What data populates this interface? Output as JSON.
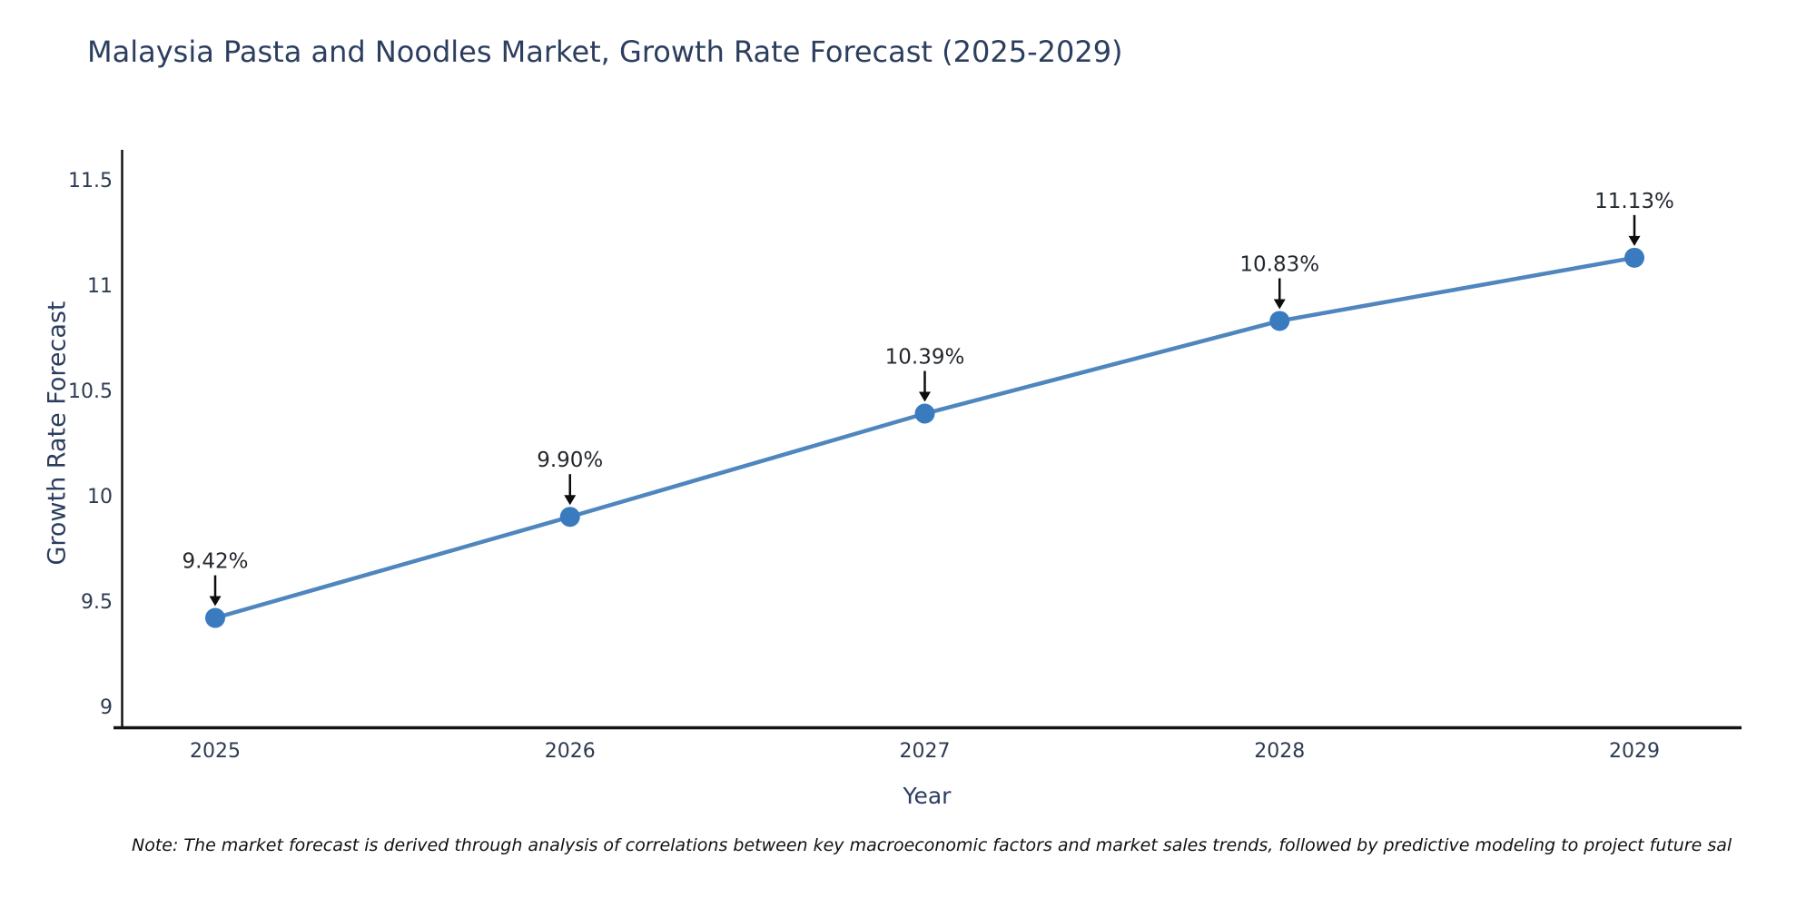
{
  "title": "Malaysia Pasta and Noodles Market, Growth Rate Forecast (2025-2029)",
  "note": "Note: The market forecast is derived through analysis of correlations between key macroeconomic factors and market sales trends, followed by predictive modeling to project future sal",
  "chart_data": {
    "type": "line",
    "title": "Malaysia Pasta and Noodles Market, Growth Rate Forecast (2025-2029)",
    "xlabel": "Year",
    "ylabel": "Growth Rate Forecast",
    "x": [
      2025,
      2026,
      2027,
      2028,
      2029
    ],
    "xtick_labels": [
      "2025",
      "2026",
      "2027",
      "2028",
      "2029"
    ],
    "series": [
      {
        "name": "Growth Rate Forecast",
        "values": [
          9.42,
          9.9,
          10.39,
          10.83,
          11.13
        ]
      }
    ],
    "point_labels": [
      "9.42%",
      "9.90%",
      "10.39%",
      "10.83%",
      "11.13%"
    ],
    "yticks": [
      9,
      9.5,
      10,
      10.5,
      11,
      11.5
    ],
    "ylim": [
      8.9,
      11.66
    ],
    "grid": false,
    "legend": false,
    "annotation_style": "label-with-down-arrow",
    "colors": {
      "line": "#4e86bd",
      "marker": "#3a7bbf",
      "axis": "#141414",
      "title": "#2c3e5f",
      "tick": "#2e3b52",
      "annotation": "#23272e",
      "arrow": "#0d0d0d",
      "note": "#111111",
      "background": "#ffffff"
    }
  }
}
